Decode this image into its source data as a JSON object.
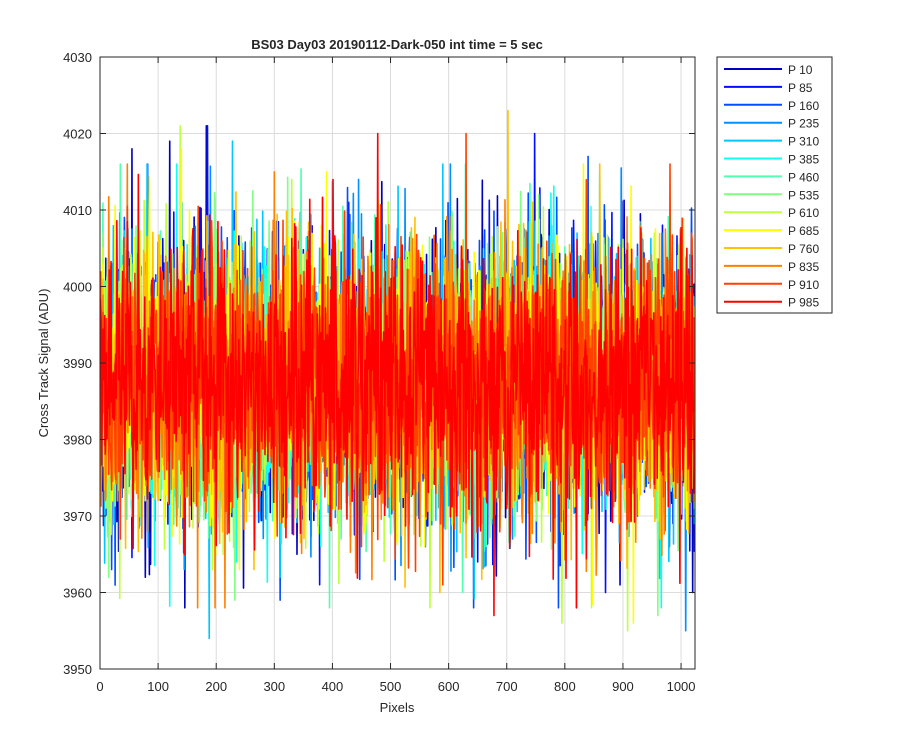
{
  "chart_data": {
    "type": "line",
    "title": "BS03 Day03 20190112-Dark-050 int time = 5 sec",
    "xlabel": "Pixels",
    "ylabel": "Cross Track Signal (ADU)",
    "xlim": [
      0,
      1024
    ],
    "ylim": [
      3950,
      4030
    ],
    "xticks": [
      0,
      100,
      200,
      300,
      400,
      500,
      600,
      700,
      800,
      900,
      1000
    ],
    "yticks": [
      3950,
      3960,
      3970,
      3980,
      3990,
      4000,
      4010,
      4020,
      4030
    ],
    "grid": true,
    "legend_position": "outside-top-right",
    "n_points_per_series": 1024,
    "series": [
      {
        "name": "P 10",
        "color": "#0000bf",
        "mean": 3987.5,
        "spread": 8.8,
        "peaks": [
          [
            55,
            4018
          ],
          [
            120,
            4019
          ],
          [
            183,
            4021
          ],
          [
            78,
            3962
          ],
          [
            895,
            3961
          ],
          [
            1020,
            3960
          ]
        ]
      },
      {
        "name": "P 85",
        "color": "#0010ff",
        "mean": 3987.5,
        "spread": 8.6,
        "peaks": [
          [
            748,
            4020
          ],
          [
            185,
            4021
          ],
          [
            470,
            3968
          ],
          [
            650,
            3964
          ],
          [
            870,
            3960
          ]
        ]
      },
      {
        "name": "P 160",
        "color": "#0050ff",
        "mean": 3987.5,
        "spread": 8.5,
        "peaks": [
          [
            310,
            3959
          ],
          [
            840,
            4017
          ],
          [
            20,
            3963
          ],
          [
            560,
            3966
          ],
          [
            980,
            3966
          ]
        ]
      },
      {
        "name": "P 235",
        "color": "#0090ff",
        "mean": 3987.5,
        "spread": 8.4,
        "peaks": [
          [
            1008,
            3955
          ],
          [
            445,
            4014
          ],
          [
            145,
            3963
          ],
          [
            710,
            3967
          ]
        ]
      },
      {
        "name": "P 310",
        "color": "#00c8ff",
        "mean": 3987.5,
        "spread": 8.5,
        "peaks": [
          [
            188,
            3954
          ],
          [
            228,
            4019
          ],
          [
            310,
            3962
          ],
          [
            590,
            4016
          ]
        ]
      },
      {
        "name": "P 385",
        "color": "#10ffef",
        "mean": 3987.5,
        "spread": 8.3,
        "peaks": [
          [
            860,
            4015
          ],
          [
            235,
            3964
          ],
          [
            380,
            3966
          ]
        ]
      },
      {
        "name": "P 460",
        "color": "#50ffaf",
        "mean": 3987.5,
        "spread": 8.3,
        "peaks": [
          [
            35,
            4016
          ],
          [
            415,
            3967
          ],
          [
            665,
            3966
          ]
        ]
      },
      {
        "name": "P 535",
        "color": "#80ff80",
        "mean": 3987.5,
        "spread": 8.4,
        "peaks": [
          [
            232,
            3959
          ],
          [
            755,
            4012
          ],
          [
            15,
            3962
          ],
          [
            960,
            3957
          ]
        ]
      },
      {
        "name": "P 610",
        "color": "#c0ff40",
        "mean": 3987.5,
        "spread": 8.6,
        "peaks": [
          [
            138,
            4021
          ],
          [
            795,
            3956
          ],
          [
            908,
            3955
          ],
          [
            330,
            4014
          ]
        ]
      },
      {
        "name": "P 685",
        "color": "#ffff00",
        "mean": 3987.5,
        "spread": 8.6,
        "peaks": [
          [
            140,
            4018
          ],
          [
            918,
            3956
          ],
          [
            390,
            4015
          ],
          [
            240,
            3963
          ]
        ]
      },
      {
        "name": "P 760",
        "color": "#ffc000",
        "mean": 3987.5,
        "spread": 8.7,
        "peaks": [
          [
            702,
            4023
          ],
          [
            585,
            3960
          ],
          [
            265,
            3963
          ]
        ]
      },
      {
        "name": "P 835",
        "color": "#ff8000",
        "mean": 3987.5,
        "spread": 8.8,
        "peaks": [
          [
            300,
            4015
          ],
          [
            82,
            3968
          ],
          [
            820,
            3958
          ]
        ]
      },
      {
        "name": "P 910",
        "color": "#ff4000",
        "mean": 3987.5,
        "spread": 8.8,
        "peaks": [
          [
            630,
            4020
          ],
          [
            590,
            3961
          ],
          [
            450,
            3966
          ]
        ]
      },
      {
        "name": "P 985",
        "color": "#ff0000",
        "mean": 3987.5,
        "spread": 8.9,
        "peaks": [
          [
            478,
            4020
          ],
          [
            678,
            3957
          ],
          [
            820,
            3958
          ],
          [
            1010,
            4005
          ]
        ]
      }
    ]
  }
}
